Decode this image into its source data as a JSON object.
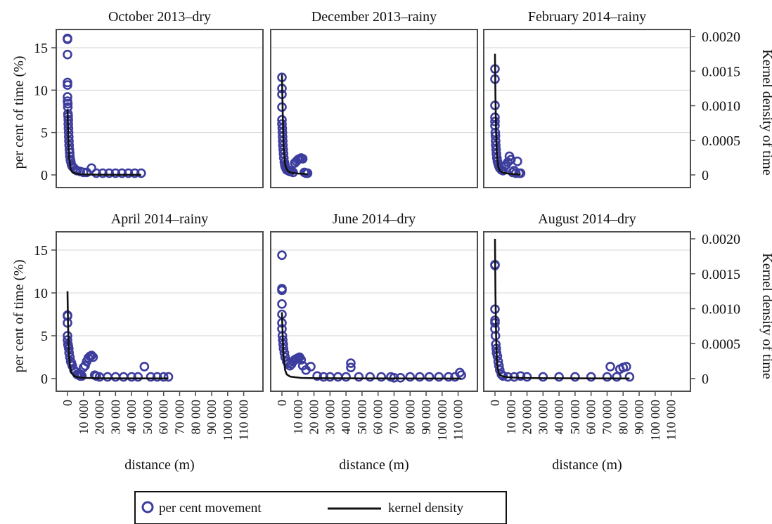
{
  "figure": {
    "left_axis_label": "per cent of time (%)",
    "right_axis_label": "Kernel density of time",
    "x_axis_label": "distance (m)"
  },
  "legend": {
    "items": [
      {
        "label": "per cent movement",
        "marker": "circle"
      },
      {
        "label": "kernel density",
        "marker": "line"
      }
    ]
  },
  "colors": {
    "points": "#3d3d9e",
    "line": "#111111",
    "panel_border": "#4d4d4d",
    "grid": "#d4d4d4"
  },
  "axes": {
    "left_ticks": [
      "0",
      "5",
      "10",
      "15"
    ],
    "right_ticks": [
      "0",
      "0.0005",
      "0.0010",
      "0.0015",
      "0.0020"
    ],
    "x_ticks": [
      "0",
      "10 000",
      "20 000",
      "30 000",
      "40 000",
      "50 000",
      "60 000",
      "70 000",
      "80 000",
      "90 000",
      "100 000",
      "110 000"
    ]
  },
  "chart_data": [
    {
      "type": "scatter",
      "title": "October 2013–dry",
      "xlabel": "distance (m)",
      "ylabel": "per cent of time (%)",
      "y2label": "Kernel density of time",
      "xlim": [
        0,
        115000
      ],
      "ylim": [
        0,
        17
      ],
      "y2lim": [
        0,
        0.00215
      ],
      "series": [
        {
          "name": "per cent movement",
          "kind": "points",
          "x": [
            0,
            0,
            0,
            0,
            0,
            0,
            0,
            200,
            200,
            300,
            400,
            500,
            500,
            600,
            700,
            800,
            900,
            1000,
            1200,
            1400,
            1500,
            1800,
            2000,
            2500,
            3000,
            4000,
            5000,
            6000,
            8000,
            10000,
            12000,
            15000,
            18000,
            22000,
            26000,
            30000,
            34000,
            38000,
            42000,
            46000
          ],
          "y": [
            16.1,
            16.0,
            14.2,
            10.9,
            10.6,
            9.2,
            8.7,
            8.4,
            8.0,
            7.2,
            6.9,
            6.5,
            6.0,
            5.5,
            5.0,
            4.5,
            4.0,
            3.5,
            3.0,
            2.6,
            2.2,
            1.8,
            1.6,
            1.2,
            1.0,
            0.8,
            0.6,
            0.5,
            0.4,
            0.3,
            0.3,
            0.8,
            0.2,
            0.2,
            0.2,
            0.2,
            0.2,
            0.2,
            0.2,
            0.2
          ]
        },
        {
          "name": "kernel density",
          "kind": "line",
          "x": [
            0,
            500,
            1000,
            2000,
            3000,
            5000,
            8000,
            12000,
            20000,
            30000,
            46000
          ],
          "y": [
            0.00095,
            0.00055,
            0.00025,
            8e-05,
            4e-05,
            2e-05,
            1e-05,
            5e-06,
            3e-06,
            2e-06,
            1e-06
          ]
        }
      ]
    },
    {
      "type": "scatter",
      "title": "December 2013–rainy",
      "xlabel": "distance (m)",
      "ylabel": "per cent of time (%)",
      "y2label": "Kernel density of time",
      "xlim": [
        0,
        115000
      ],
      "ylim": [
        0,
        17
      ],
      "y2lim": [
        0,
        0.00215
      ],
      "series": [
        {
          "name": "per cent movement",
          "kind": "points",
          "x": [
            0,
            0,
            0,
            0,
            0,
            0,
            200,
            300,
            400,
            500,
            600,
            800,
            1000,
            1200,
            1500,
            1800,
            2000,
            2500,
            3000,
            4000,
            5000,
            6000,
            7000,
            8000,
            9000,
            10000,
            11000,
            12000,
            13000,
            14000,
            15000,
            16000
          ],
          "y": [
            11.5,
            10.2,
            9.5,
            8.0,
            6.5,
            6.0,
            5.5,
            5.0,
            4.5,
            4.0,
            3.5,
            3.0,
            2.5,
            2.0,
            1.5,
            1.2,
            1.0,
            0.8,
            0.6,
            0.5,
            0.4,
            0.5,
            0.3,
            1.4,
            1.6,
            1.8,
            1.9,
            2.0,
            1.9,
            0.3,
            0.2,
            0.2
          ]
        },
        {
          "name": "kernel density",
          "kind": "line",
          "x": [
            0,
            500,
            1000,
            2000,
            3000,
            4000,
            6000,
            10000,
            16000
          ],
          "y": [
            0.00145,
            0.0009,
            0.0004,
            0.00015,
            8e-05,
            5e-05,
            3e-05,
            2e-05,
            1e-05
          ]
        }
      ]
    },
    {
      "type": "scatter",
      "title": "February 2014–rainy",
      "xlabel": "distance (m)",
      "ylabel": "per cent of time (%)",
      "y2label": "Kernel density of time",
      "xlim": [
        0,
        115000
      ],
      "ylim": [
        0,
        17
      ],
      "y2lim": [
        0,
        0.00215
      ],
      "series": [
        {
          "name": "per cent movement",
          "kind": "points",
          "x": [
            0,
            0,
            0,
            0,
            0,
            0,
            200,
            300,
            400,
            500,
            700,
            900,
            1200,
            1500,
            2000,
            2500,
            3000,
            4000,
            5000,
            6000,
            7000,
            8000,
            9000,
            10000,
            11000,
            12000,
            13000,
            14000,
            15000,
            16000
          ],
          "y": [
            11.3,
            12.5,
            8.2,
            6.8,
            6.3,
            5.8,
            5.0,
            4.6,
            4.0,
            3.5,
            3.0,
            2.5,
            2.0,
            1.6,
            1.3,
            1.0,
            0.8,
            0.6,
            0.5,
            1.0,
            1.2,
            1.5,
            2.2,
            1.8,
            0.3,
            0.5,
            0.2,
            1.6,
            0.2,
            0.2
          ]
        },
        {
          "name": "kernel density",
          "kind": "line",
          "x": [
            0,
            300,
            700,
            1200,
            2000,
            3000,
            5000,
            8000,
            12000,
            16000
          ],
          "y": [
            0.00175,
            0.0011,
            0.0006,
            0.0003,
            0.00012,
            6e-05,
            3e-05,
            2e-05,
            1e-05,
            5e-06
          ]
        }
      ]
    },
    {
      "type": "scatter",
      "title": "April 2014–rainy",
      "xlabel": "distance (m)",
      "ylabel": "per cent of time (%)",
      "y2label": "Kernel density of time",
      "xlim": [
        0,
        115000
      ],
      "ylim": [
        0,
        17
      ],
      "y2lim": [
        0,
        0.00215
      ],
      "series": [
        {
          "name": "per cent movement",
          "kind": "points",
          "x": [
            0,
            0,
            0,
            0,
            0,
            300,
            500,
            800,
            1000,
            1500,
            2000,
            2500,
            3000,
            4000,
            5000,
            6000,
            7000,
            8000,
            9000,
            10000,
            11000,
            12000,
            13000,
            14000,
            15000,
            16000,
            17000,
            18000,
            20000,
            25000,
            30000,
            35000,
            40000,
            44000,
            48000,
            52000,
            56000,
            60000,
            63000
          ],
          "y": [
            7.4,
            7.3,
            6.5,
            5.0,
            4.5,
            4.0,
            3.8,
            3.5,
            3.0,
            2.5,
            2.0,
            1.8,
            1.5,
            1.0,
            0.8,
            0.5,
            0.4,
            0.3,
            0.3,
            1.3,
            1.5,
            2.0,
            2.4,
            2.6,
            2.7,
            2.5,
            0.4,
            0.3,
            0.2,
            0.2,
            0.2,
            0.2,
            0.2,
            0.2,
            1.4,
            0.2,
            0.2,
            0.2,
            0.2
          ]
        },
        {
          "name": "kernel density",
          "kind": "line",
          "x": [
            0,
            300,
            800,
            1500,
            2500,
            4000,
            6000,
            10000,
            20000,
            40000,
            63000
          ],
          "y": [
            0.00125,
            0.0008,
            0.0004,
            0.00018,
            8e-05,
            4e-05,
            2e-05,
            1e-05,
            5e-06,
            3e-06,
            2e-06
          ]
        }
      ]
    },
    {
      "type": "scatter",
      "title": "June 2014–dry",
      "xlabel": "distance (m)",
      "ylabel": "per cent of time (%)",
      "y2label": "Kernel density of time",
      "xlim": [
        0,
        115000
      ],
      "ylim": [
        0,
        17
      ],
      "y2lim": [
        0,
        0.00215
      ],
      "series": [
        {
          "name": "per cent movement",
          "kind": "points",
          "x": [
            0,
            0,
            0,
            0,
            0,
            0,
            0,
            300,
            500,
            800,
            1000,
            1500,
            2000,
            3000,
            4000,
            5000,
            6000,
            7000,
            8000,
            9000,
            10000,
            11000,
            12000,
            13000,
            15000,
            18000,
            22000,
            26000,
            30000,
            35000,
            40000,
            43000,
            43000,
            48000,
            55000,
            62000,
            68000,
            70000,
            74000,
            80000,
            86000,
            92000,
            98000,
            104000,
            108000,
            111000,
            112000
          ],
          "y": [
            14.4,
            10.5,
            10.3,
            8.7,
            7.5,
            6.5,
            5.8,
            5.0,
            4.5,
            4.0,
            3.5,
            3.0,
            2.5,
            2.0,
            1.8,
            1.5,
            1.7,
            2.0,
            2.2,
            2.3,
            2.4,
            2.5,
            2.2,
            1.5,
            1.0,
            1.4,
            0.3,
            0.2,
            0.2,
            0.2,
            0.2,
            1.8,
            1.3,
            0.2,
            0.2,
            0.2,
            0.2,
            0.1,
            0.1,
            0.2,
            0.2,
            0.2,
            0.2,
            0.2,
            0.2,
            0.7,
            0.4
          ]
        },
        {
          "name": "kernel density",
          "kind": "line",
          "x": [
            0,
            500,
            1000,
            2000,
            3000,
            5000,
            8000,
            12000,
            20000,
            40000,
            70000,
            112000
          ],
          "y": [
            0.00095,
            0.0006,
            0.0003,
            0.00012,
            6e-05,
            3e-05,
            2e-05,
            1e-05,
            6e-06,
            4e-06,
            2e-06,
            1e-06
          ]
        }
      ]
    },
    {
      "type": "scatter",
      "title": "August 2014–dry",
      "xlabel": "distance (m)",
      "ylabel": "per cent of time (%)",
      "y2label": "Kernel density of time",
      "xlim": [
        0,
        115000
      ],
      "ylim": [
        0,
        17
      ],
      "y2lim": [
        0,
        0.00215
      ],
      "series": [
        {
          "name": "per cent movement",
          "kind": "points",
          "x": [
            0,
            0,
            0,
            0,
            0,
            0,
            300,
            500,
            800,
            1000,
            1500,
            2000,
            2500,
            3000,
            4000,
            5000,
            8000,
            12000,
            16000,
            20000,
            30000,
            40000,
            50000,
            60000,
            70000,
            72000,
            76000,
            78000,
            80000,
            82000,
            84000
          ],
          "y": [
            13.3,
            13.2,
            8.1,
            6.8,
            6.5,
            5.8,
            5.0,
            4.0,
            3.5,
            3.0,
            2.6,
            2.0,
            1.5,
            1.0,
            0.5,
            0.3,
            0.2,
            0.2,
            0.3,
            0.2,
            0.2,
            0.2,
            0.2,
            0.2,
            0.2,
            1.4,
            0.2,
            1.1,
            1.3,
            1.4,
            0.2
          ]
        },
        {
          "name": "kernel density",
          "kind": "line",
          "x": [
            0,
            300,
            700,
            1200,
            2000,
            3000,
            5000,
            8000,
            15000,
            30000,
            60000,
            84000
          ],
          "y": [
            0.002,
            0.0012,
            0.0006,
            0.00025,
            0.0001,
            5e-05,
            3e-05,
            2e-05,
            1e-05,
            6e-06,
            3e-06,
            2e-06
          ]
        }
      ]
    }
  ]
}
